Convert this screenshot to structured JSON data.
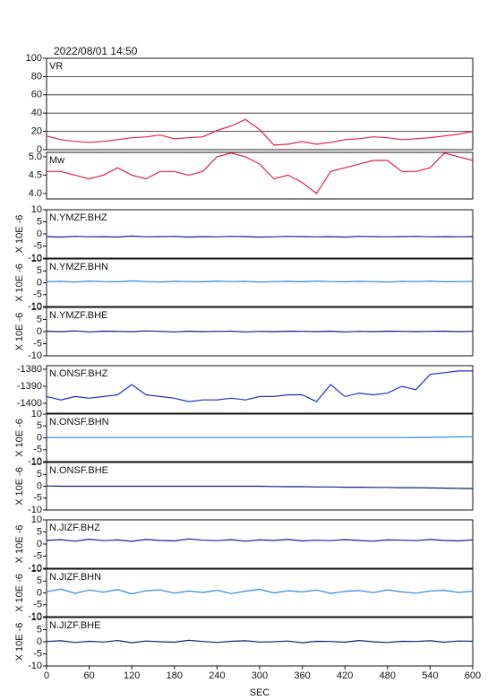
{
  "chart_data": [
    {
      "type": "line",
      "title": "2022/08/01 14:50",
      "xlim": [
        0,
        600
      ],
      "ylim": [
        0,
        100
      ],
      "yticks": [
        0,
        20,
        40,
        60,
        80,
        100
      ],
      "grid": true,
      "x": [
        0,
        20,
        40,
        60,
        80,
        100,
        120,
        140,
        160,
        180,
        200,
        220,
        240,
        260,
        280,
        300,
        320,
        340,
        360,
        380,
        400,
        420,
        440,
        460,
        480,
        500,
        520,
        540,
        560,
        580,
        600
      ],
      "series": [
        {
          "name": "VR",
          "color": "#e0204a",
          "values": [
            15,
            11,
            9,
            8,
            9,
            11,
            13,
            14,
            16,
            12,
            13,
            14,
            21,
            26,
            33,
            22,
            5,
            6,
            9,
            6,
            8,
            11,
            12,
            14,
            13,
            11,
            12,
            13,
            15,
            17,
            20
          ]
        }
      ]
    },
    {
      "type": "line",
      "xlim": [
        0,
        600
      ],
      "ylim": [
        3.85,
        5.12
      ],
      "yticks": [
        {
          "value": 4,
          "label": "4.0"
        },
        4.5,
        {
          "value": 5,
          "label": "5.0"
        }
      ],
      "x": [
        0,
        20,
        40,
        60,
        80,
        100,
        120,
        140,
        160,
        180,
        200,
        220,
        240,
        260,
        280,
        300,
        320,
        340,
        360,
        380,
        400,
        420,
        440,
        460,
        480,
        500,
        520,
        540,
        560,
        580,
        600
      ],
      "series": [
        {
          "name": "Mw",
          "color": "#e0204a",
          "values": [
            4.6,
            4.6,
            4.5,
            4.4,
            4.5,
            4.7,
            4.5,
            4.4,
            4.6,
            4.6,
            4.5,
            4.6,
            5.0,
            5.1,
            5.0,
            4.8,
            4.4,
            4.5,
            4.3,
            4.0,
            4.6,
            4.7,
            4.8,
            4.9,
            4.9,
            4.6,
            4.6,
            4.7,
            5.1,
            5.0,
            4.9
          ]
        }
      ]
    },
    {
      "type": "line",
      "ylabel": "X 10E -6",
      "xlim": [
        0,
        600
      ],
      "ylim": [
        -10,
        10
      ],
      "yticks": [
        -10,
        -5,
        0,
        5,
        10
      ],
      "x": [
        0,
        20,
        40,
        60,
        80,
        100,
        120,
        140,
        160,
        180,
        200,
        220,
        240,
        260,
        280,
        300,
        320,
        340,
        360,
        380,
        400,
        420,
        440,
        460,
        480,
        500,
        520,
        540,
        560,
        580,
        600
      ],
      "series": [
        {
          "name": "N.YMZF.BHZ",
          "color": "#1a1aa0",
          "values": [
            -1.1,
            -1.3,
            -1.0,
            -1.2,
            -1.1,
            -1.3,
            -0.9,
            -1.2,
            -1.1,
            -1.0,
            -1.3,
            -1.1,
            -1.2,
            -1.0,
            -1.1,
            -1.3,
            -1.2,
            -1.0,
            -1.1,
            -1.2,
            -1.1,
            -1.3,
            -1.0,
            -1.1,
            -1.2,
            -1.1,
            -1.0,
            -1.2,
            -1.1,
            -1.2,
            -1.1
          ]
        }
      ]
    },
    {
      "type": "line",
      "ylabel": "X 10E -6",
      "xlim": [
        0,
        600
      ],
      "ylim": [
        -10,
        10
      ],
      "yticks": [
        -10,
        -5,
        0,
        5,
        10
      ],
      "x": [
        0,
        20,
        40,
        60,
        80,
        100,
        120,
        140,
        160,
        180,
        200,
        220,
        240,
        260,
        280,
        300,
        320,
        340,
        360,
        380,
        400,
        420,
        440,
        460,
        480,
        500,
        520,
        540,
        560,
        580,
        600
      ],
      "series": [
        {
          "name": "N.YMZF.BHN",
          "color": "#2a8ae0",
          "values": [
            0.4,
            0.6,
            0.3,
            0.7,
            0.5,
            0.4,
            0.8,
            0.5,
            0.3,
            0.6,
            0.5,
            0.4,
            0.7,
            0.5,
            0.6,
            0.3,
            0.5,
            0.6,
            0.4,
            0.7,
            0.5,
            0.4,
            0.6,
            0.5,
            0.3,
            0.6,
            0.5,
            0.7,
            0.4,
            0.5,
            0.6
          ]
        }
      ]
    },
    {
      "type": "line",
      "ylabel": "X 10E -6",
      "xlim": [
        0,
        600
      ],
      "ylim": [
        -10,
        10
      ],
      "yticks": [
        -10,
        -5,
        0,
        5,
        10
      ],
      "x": [
        0,
        20,
        40,
        60,
        80,
        100,
        120,
        140,
        160,
        180,
        200,
        220,
        240,
        260,
        280,
        300,
        320,
        340,
        360,
        380,
        400,
        420,
        440,
        460,
        480,
        500,
        520,
        540,
        560,
        580,
        600
      ],
      "series": [
        {
          "name": "N.YMZF.BHE",
          "color": "#10207a",
          "values": [
            0.2,
            0.0,
            0.3,
            -0.1,
            0.2,
            0.1,
            0.0,
            0.3,
            0.1,
            -0.1,
            0.2,
            0.0,
            0.1,
            0.2,
            -0.1,
            0.1,
            0.0,
            0.2,
            0.1,
            0.0,
            0.2,
            -0.1,
            0.1,
            0.0,
            0.2,
            0.1,
            0.0,
            0.1,
            0.2,
            0.0,
            0.1
          ]
        }
      ]
    },
    {
      "type": "line",
      "xlim": [
        0,
        600
      ],
      "ylim": [
        -1405.8,
        -1377.9
      ],
      "yticks": [
        -1400,
        -1390,
        -1380
      ],
      "x": [
        0,
        20,
        40,
        60,
        80,
        100,
        120,
        140,
        160,
        180,
        200,
        220,
        240,
        260,
        280,
        300,
        320,
        340,
        360,
        380,
        400,
        420,
        440,
        460,
        480,
        500,
        520,
        540,
        560,
        580,
        600
      ],
      "series": [
        {
          "name": "N.ONSF.BHZ",
          "color": "#1c2fd0",
          "values": [
            -1396,
            -1398,
            -1396,
            -1397,
            -1396,
            -1395,
            -1389,
            -1395,
            -1396,
            -1397,
            -1399,
            -1398,
            -1398,
            -1397,
            -1398,
            -1396,
            -1396,
            -1395,
            -1395,
            -1399,
            -1389,
            -1396,
            -1394,
            -1395,
            -1394,
            -1390,
            -1392,
            -1383,
            -1382,
            -1381,
            -1381
          ]
        }
      ]
    },
    {
      "type": "line",
      "ylabel": "X 10E -6",
      "xlim": [
        0,
        600
      ],
      "ylim": [
        -10,
        10
      ],
      "yticks": [
        -10,
        -5,
        0,
        5,
        10
      ],
      "x": [
        0,
        20,
        40,
        60,
        80,
        100,
        120,
        140,
        160,
        180,
        200,
        220,
        240,
        260,
        280,
        300,
        320,
        340,
        360,
        380,
        400,
        420,
        440,
        460,
        480,
        500,
        520,
        540,
        560,
        580,
        600
      ],
      "series": [
        {
          "name": "N.ONSF.BHN",
          "color": "#2a8ae0",
          "values": [
            0.2,
            0.1,
            0.1,
            0.1,
            0.1,
            0.1,
            0.1,
            0.1,
            0.1,
            0.1,
            0.1,
            0.1,
            0.1,
            0.1,
            0.1,
            0.1,
            0.1,
            0.1,
            0.1,
            0.1,
            0.1,
            0.1,
            0.1,
            0.1,
            0.1,
            0.1,
            0.2,
            0.2,
            0.3,
            0.4,
            0.5
          ]
        }
      ]
    },
    {
      "type": "line",
      "ylabel": "X 10E -6",
      "xlim": [
        0,
        600
      ],
      "ylim": [
        -10,
        10
      ],
      "yticks": [
        -10,
        -5,
        0,
        5,
        10
      ],
      "x": [
        0,
        20,
        40,
        60,
        80,
        100,
        120,
        140,
        160,
        180,
        200,
        220,
        240,
        260,
        280,
        300,
        320,
        340,
        360,
        380,
        400,
        420,
        440,
        460,
        480,
        500,
        520,
        540,
        560,
        580,
        600
      ],
      "series": [
        {
          "name": "N.ONSF.BHE",
          "color": "#10207a",
          "values": [
            0.1,
            0.0,
            0.0,
            0.0,
            0.0,
            0.0,
            0.0,
            0.0,
            0.0,
            0.0,
            0.0,
            0.0,
            0.0,
            0.0,
            0.0,
            0.0,
            -0.1,
            -0.2,
            -0.2,
            -0.3,
            -0.3,
            -0.4,
            -0.4,
            -0.5,
            -0.5,
            -0.6,
            -0.6,
            -0.7,
            -0.8,
            -0.9,
            -1.0
          ]
        }
      ]
    },
    {
      "type": "line",
      "ylabel": "X 10E -6",
      "xlim": [
        0,
        600
      ],
      "ylim": [
        -10,
        10
      ],
      "yticks": [
        -10,
        -5,
        0,
        5,
        10
      ],
      "x": [
        0,
        20,
        40,
        60,
        80,
        100,
        120,
        140,
        160,
        180,
        200,
        220,
        240,
        260,
        280,
        300,
        320,
        340,
        360,
        380,
        400,
        420,
        440,
        460,
        480,
        500,
        520,
        540,
        560,
        580,
        600
      ],
      "series": [
        {
          "name": "N.JIZF.BHZ",
          "color": "#1a1aa0",
          "values": [
            1.5,
            1.8,
            1.2,
            2.0,
            1.4,
            1.7,
            1.1,
            1.9,
            1.5,
            1.3,
            2.1,
            1.6,
            1.4,
            1.8,
            1.2,
            1.7,
            1.5,
            1.9,
            1.3,
            1.6,
            1.4,
            1.8,
            1.5,
            1.2,
            1.7,
            1.6,
            1.4,
            1.9,
            1.5,
            1.3,
            1.7
          ]
        }
      ]
    },
    {
      "type": "line",
      "ylabel": "X 10E -6",
      "xlim": [
        0,
        600
      ],
      "ylim": [
        -10,
        10
      ],
      "yticks": [
        -10,
        -5,
        0,
        5,
        10
      ],
      "x": [
        0,
        20,
        40,
        60,
        80,
        100,
        120,
        140,
        160,
        180,
        200,
        220,
        240,
        260,
        280,
        300,
        320,
        340,
        360,
        380,
        400,
        420,
        440,
        460,
        480,
        500,
        520,
        540,
        560,
        580,
        600
      ],
      "series": [
        {
          "name": "N.JIZF.BHN",
          "color": "#2a8ae0",
          "values": [
            0.5,
            1.6,
            -0.2,
            1.2,
            0.3,
            1.4,
            -0.4,
            0.9,
            1.3,
            -0.1,
            0.8,
            0.2,
            1.1,
            -0.3,
            0.7,
            1.5,
            0.0,
            0.9,
            0.4,
            1.2,
            -0.2,
            0.6,
            1.0,
            0.1,
            1.3,
            0.4,
            -0.1,
            0.8,
            1.1,
            0.2,
            0.7
          ]
        }
      ]
    },
    {
      "type": "line",
      "ylabel": "X 10E -6",
      "xlabel": "SEC",
      "xlim": [
        0,
        600
      ],
      "ylim": [
        -10,
        10
      ],
      "yticks": [
        -10,
        -5,
        0,
        5,
        10
      ],
      "xticks": [
        0,
        60,
        120,
        180,
        240,
        300,
        360,
        420,
        480,
        540,
        600
      ],
      "x": [
        0,
        20,
        40,
        60,
        80,
        100,
        120,
        140,
        160,
        180,
        200,
        220,
        240,
        260,
        280,
        300,
        320,
        340,
        360,
        380,
        400,
        420,
        440,
        460,
        480,
        500,
        520,
        540,
        560,
        580,
        600
      ],
      "series": [
        {
          "name": "N.JIZF.BHE",
          "color": "#10207a",
          "values": [
            0.1,
            0.4,
            -0.3,
            0.2,
            -0.1,
            0.5,
            -0.4,
            0.3,
            0.0,
            -0.2,
            0.6,
            0.1,
            -0.3,
            0.2,
            0.4,
            -0.1,
            0.0,
            0.3,
            -0.4,
            0.2,
            0.1,
            -0.2,
            0.5,
            0.0,
            -0.3,
            0.2,
            0.1,
            0.4,
            -0.2,
            0.3,
            0.2
          ]
        }
      ]
    }
  ]
}
